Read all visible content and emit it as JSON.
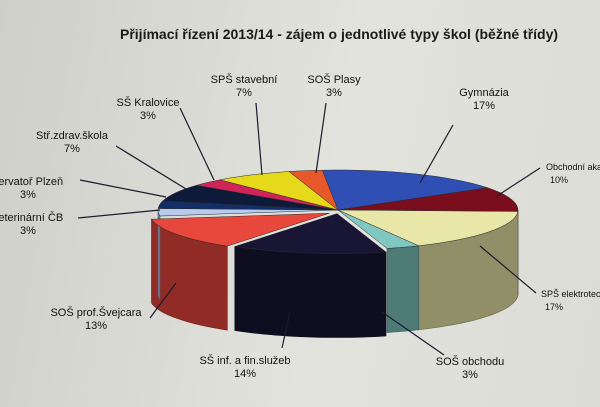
{
  "chart_data": {
    "type": "pie",
    "style": "3d-exploded",
    "title": "Přijímací řízení 2013/14 - zájem o jednotlivé typy škol (běžné třídy)",
    "slices": [
      {
        "label": "Gymnázia",
        "percent": "17%",
        "value": 17,
        "color": "#2f4fb4"
      },
      {
        "label": "Obchodní akademie",
        "percent": "10%",
        "value": 10,
        "color": "#7a0e1c"
      },
      {
        "label": "SPŠ elektrotechnická",
        "percent": "17%",
        "value": 17,
        "color": "#e8e7a8"
      },
      {
        "label": "SOŠ obchodu",
        "percent": "3%",
        "value": 3,
        "color": "#7fc7c0"
      },
      {
        "label": "SŠ inf. a fin.služeb",
        "percent": "14%",
        "value": 14,
        "color": "#181634"
      },
      {
        "label": "SOŠ prof.Švejcara",
        "percent": "13%",
        "value": 13,
        "color": "#e8473c"
      },
      {
        "label": "veterinární ČB",
        "percent": "3%",
        "value": 3,
        "color": "#b7ccec"
      },
      {
        "label": "zervatoř Plzeň",
        "percent": "3%",
        "value": 3,
        "color": "#132f6a"
      },
      {
        "label": "Stř.zdrav.škola",
        "percent": "7%",
        "value": 7,
        "color": "#0e1a3a"
      },
      {
        "label": "SŠ Kralovice",
        "percent": "3%",
        "value": 3,
        "color": "#d2245a"
      },
      {
        "label": "SPŠ stavební",
        "percent": "7%",
        "value": 7,
        "color": "#e6d81a"
      },
      {
        "label": "SOŠ Plasy",
        "percent": "3%",
        "value": 3,
        "color": "#e8582a"
      }
    ]
  }
}
